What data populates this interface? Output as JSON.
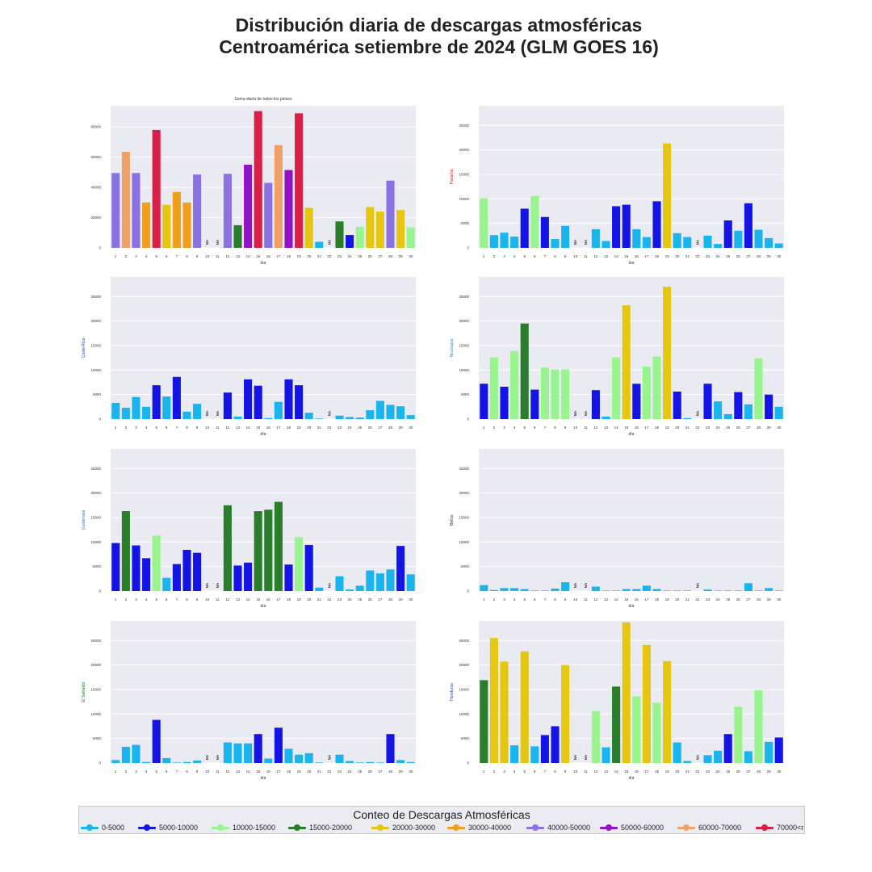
{
  "figure": {
    "title_line1": "Distribución diaria de descargas atmosféricas",
    "title_line2": "Centroamérica setiembre de 2024 (GLM GOES 16)"
  },
  "legend": {
    "title": "Conteo de Descargas Atmosféricas",
    "items": [
      {
        "label": "0-5000",
        "color": "#1ab5ee"
      },
      {
        "label": "5000-10000",
        "color": "#1414e6"
      },
      {
        "label": "10000-15000",
        "color": "#98f58e"
      },
      {
        "label": "15000-20000",
        "color": "#2a7d2a"
      },
      {
        "label": "20000-30000",
        "color": "#e5c712"
      },
      {
        "label": "30000-40000",
        "color": "#efa01a"
      },
      {
        "label": "40000-50000",
        "color": "#8a72e3"
      },
      {
        "label": "50000-60000",
        "color": "#9412c4"
      },
      {
        "label": "60000-70000",
        "color": "#efa066"
      },
      {
        "label": "70000<r",
        "color": "#da1e45"
      }
    ]
  },
  "chart_data": [
    {
      "type": "bar",
      "title": "Suma diaria de todos los países",
      "xlabel": "día",
      "ylabel": "",
      "ylabel_color": "#333333",
      "ylim": [
        0,
        94000
      ],
      "yticks": [
        0,
        20000,
        40000,
        60000,
        80000
      ],
      "categories": [
        "1",
        "2",
        "3",
        "4",
        "5",
        "6",
        "7",
        "8",
        "9",
        "10",
        "11",
        "12",
        "13",
        "14",
        "15",
        "16",
        "17",
        "18",
        "19",
        "20",
        "21",
        "22",
        "23",
        "24",
        "25",
        "26",
        "27",
        "28",
        "29",
        "30"
      ],
      "values": [
        49500,
        63500,
        49500,
        30000,
        78000,
        28500,
        37000,
        30000,
        48500,
        null,
        null,
        49000,
        15000,
        55000,
        90500,
        43000,
        68000,
        51500,
        89000,
        26500,
        4000,
        null,
        17500,
        8500,
        14000,
        27000,
        24000,
        44500,
        25000,
        13500
      ]
    },
    {
      "type": "bar",
      "title": "",
      "xlabel": "día",
      "ylabel": "Panamá",
      "ylabel_color": "#e8112d",
      "ylim": [
        0,
        29000
      ],
      "yticks": [
        0,
        5000,
        10000,
        15000,
        20000,
        25000
      ],
      "categories": [
        "1",
        "2",
        "3",
        "4",
        "5",
        "6",
        "7",
        "8",
        "9",
        "10",
        "11",
        "12",
        "13",
        "14",
        "15",
        "16",
        "17",
        "18",
        "19",
        "20",
        "21",
        "22",
        "23",
        "24",
        "25",
        "26",
        "27",
        "28",
        "29",
        "30"
      ],
      "values": [
        10100,
        2600,
        3100,
        2300,
        8000,
        10600,
        6300,
        1800,
        4500,
        null,
        null,
        3800,
        1400,
        8500,
        8800,
        3800,
        2200,
        9500,
        21300,
        3000,
        2200,
        null,
        2500,
        800,
        5600,
        3500,
        9100,
        3700,
        2000,
        900
      ]
    },
    {
      "type": "bar",
      "title": "",
      "xlabel": "día",
      "ylabel": "Costa Rica",
      "ylabel_color": "#1f3aa8",
      "ylim": [
        0,
        29000
      ],
      "yticks": [
        0,
        5000,
        10000,
        15000,
        20000,
        25000
      ],
      "categories": [
        "1",
        "2",
        "3",
        "4",
        "5",
        "6",
        "7",
        "8",
        "9",
        "10",
        "11",
        "12",
        "13",
        "14",
        "15",
        "16",
        "17",
        "18",
        "19",
        "20",
        "21",
        "22",
        "23",
        "24",
        "25",
        "26",
        "27",
        "28",
        "29",
        "30"
      ],
      "values": [
        3300,
        2300,
        4500,
        2500,
        6900,
        4600,
        8600,
        1500,
        3100,
        null,
        null,
        5400,
        500,
        8100,
        6800,
        200,
        3500,
        8100,
        6900,
        1300,
        100,
        null,
        700,
        400,
        300,
        1800,
        3700,
        2900,
        2600,
        800
      ]
    },
    {
      "type": "bar",
      "title": "",
      "xlabel": "día",
      "ylabel": "Nicaragua",
      "ylabel_color": "#3d86c8",
      "ylim": [
        0,
        29000
      ],
      "yticks": [
        0,
        5000,
        10000,
        15000,
        20000,
        25000
      ],
      "categories": [
        "1",
        "2",
        "3",
        "4",
        "5",
        "6",
        "7",
        "8",
        "9",
        "10",
        "11",
        "12",
        "13",
        "14",
        "15",
        "16",
        "17",
        "18",
        "19",
        "20",
        "21",
        "22",
        "23",
        "24",
        "25",
        "26",
        "27",
        "28",
        "29",
        "30"
      ],
      "values": [
        7200,
        12600,
        6600,
        13900,
        19500,
        6000,
        10500,
        10100,
        10100,
        null,
        null,
        5900,
        500,
        12600,
        23200,
        7200,
        10700,
        12800,
        27000,
        5600,
        200,
        null,
        7200,
        3600,
        1000,
        5500,
        3000,
        12400,
        5000,
        2500
      ]
    },
    {
      "type": "bar",
      "title": "",
      "xlabel": "día",
      "ylabel": "Guatemala",
      "ylabel_color": "#3d6fb3",
      "ylim": [
        0,
        29000
      ],
      "yticks": [
        0,
        5000,
        10000,
        15000,
        20000,
        25000
      ],
      "categories": [
        "1",
        "2",
        "3",
        "4",
        "5",
        "6",
        "7",
        "8",
        "9",
        "10",
        "11",
        "12",
        "13",
        "14",
        "15",
        "16",
        "17",
        "18",
        "19",
        "20",
        "21",
        "22",
        "23",
        "24",
        "25",
        "26",
        "27",
        "28",
        "29",
        "30"
      ],
      "values": [
        9800,
        16300,
        9300,
        6700,
        11300,
        2700,
        5500,
        8400,
        7800,
        null,
        null,
        17500,
        5200,
        5800,
        16300,
        16600,
        18200,
        5400,
        11000,
        9400,
        700,
        null,
        3000,
        300,
        1100,
        4200,
        3600,
        4400,
        9200,
        3400
      ]
    },
    {
      "type": "bar",
      "title": "",
      "xlabel": "día",
      "ylabel": "Belice",
      "ylabel_color": "#333333",
      "ylim": [
        0,
        29000
      ],
      "yticks": [
        0,
        5000,
        10000,
        15000,
        20000,
        25000
      ],
      "categories": [
        "1",
        "2",
        "3",
        "4",
        "5",
        "6",
        "7",
        "8",
        "9",
        "10",
        "11",
        "12",
        "13",
        "14",
        "15",
        "16",
        "17",
        "18",
        "19",
        "20",
        "21",
        "22",
        "23",
        "24",
        "25",
        "26",
        "27",
        "28",
        "29",
        "30"
      ],
      "values": [
        1200,
        200,
        600,
        600,
        400,
        100,
        100,
        500,
        1800,
        null,
        null,
        900,
        100,
        100,
        400,
        400,
        1100,
        400,
        100,
        100,
        100,
        null,
        300,
        100,
        100,
        100,
        1600,
        100,
        600,
        100
      ]
    },
    {
      "type": "bar",
      "title": "",
      "xlabel": "día",
      "ylabel": "El Salvador",
      "ylabel_color": "#0f7a1a",
      "ylim": [
        0,
        29000
      ],
      "yticks": [
        0,
        5000,
        10000,
        15000,
        20000,
        25000
      ],
      "categories": [
        "1",
        "2",
        "3",
        "4",
        "5",
        "6",
        "7",
        "8",
        "9",
        "10",
        "11",
        "12",
        "13",
        "14",
        "15",
        "16",
        "17",
        "18",
        "19",
        "20",
        "21",
        "22",
        "23",
        "24",
        "25",
        "26",
        "27",
        "28",
        "29",
        "30"
      ],
      "values": [
        600,
        3300,
        3700,
        200,
        8800,
        1000,
        100,
        200,
        500,
        null,
        null,
        4200,
        4000,
        4000,
        5900,
        900,
        7200,
        2900,
        1700,
        2000,
        100,
        null,
        1700,
        400,
        100,
        200,
        100,
        5900,
        600,
        200
      ]
    },
    {
      "type": "bar",
      "title": "",
      "xlabel": "día",
      "ylabel": "Honduras",
      "ylabel_color": "#1f3aa8",
      "ylim": [
        0,
        29000
      ],
      "yticks": [
        0,
        5000,
        10000,
        15000,
        20000,
        25000
      ],
      "categories": [
        "1",
        "2",
        "3",
        "4",
        "5",
        "6",
        "7",
        "8",
        "9",
        "10",
        "11",
        "12",
        "13",
        "14",
        "15",
        "16",
        "17",
        "18",
        "19",
        "20",
        "21",
        "22",
        "23",
        "24",
        "25",
        "26",
        "27",
        "28",
        "29",
        "30"
      ],
      "values": [
        16900,
        25500,
        20700,
        3600,
        22800,
        3400,
        5700,
        7500,
        20000,
        null,
        null,
        10600,
        3200,
        15600,
        28700,
        13600,
        24100,
        12300,
        20800,
        4200,
        400,
        null,
        1600,
        2500,
        5900,
        11500,
        2400,
        14900,
        4300,
        5200
      ]
    }
  ]
}
